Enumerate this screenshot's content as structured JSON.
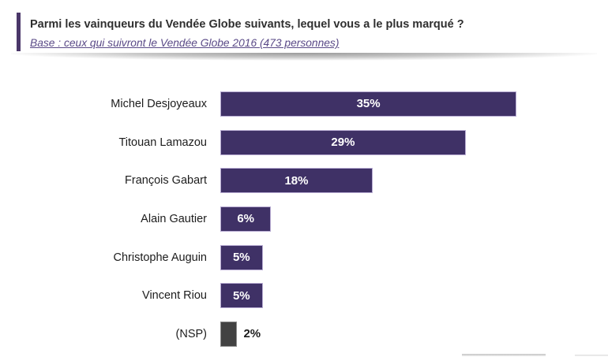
{
  "header": {
    "title": "Parmi les vainqueurs du Vendée Globe suivants, lequel vous a le plus marqué ?",
    "subtitle": "Base : ceux qui suivront le Vendée Globe 2016 (473 personnes)"
  },
  "chart_data": {
    "type": "bar",
    "orientation": "horizontal",
    "title": "Parmi les vainqueurs du Vendée Globe suivants, lequel vous a le plus marqué ?",
    "subtitle": "Base : ceux qui suivront le Vendée Globe 2016 (473 personnes)",
    "categories": [
      "Michel Desjoyeaux",
      "Titouan Lamazou",
      "François Gabart",
      "Alain Gautier",
      "Christophe Auguin",
      "Vincent Riou",
      "(NSP)"
    ],
    "values": [
      35,
      29,
      18,
      6,
      5,
      5,
      2
    ],
    "value_labels": [
      "35%",
      "29%",
      "18%",
      "6%",
      "5%",
      "5%",
      "2%"
    ],
    "unit": "%",
    "xlim": [
      0,
      35
    ],
    "grid": false,
    "legend": false,
    "value_label_position": "inside-center, outside for (NSP)"
  },
  "colors": {
    "bar_fill": "#3f3166",
    "bar_border": "#b7abd2",
    "nsp_bar_fill": "#424242",
    "nsp_bar_border": "#8a8a8a",
    "accent_bar": "#4a3769",
    "subtitle_text": "#5a4a87",
    "title_text": "#2f2f2f",
    "value_text_inside": "#ffffff",
    "value_text_outside": "#1c1c1c"
  }
}
